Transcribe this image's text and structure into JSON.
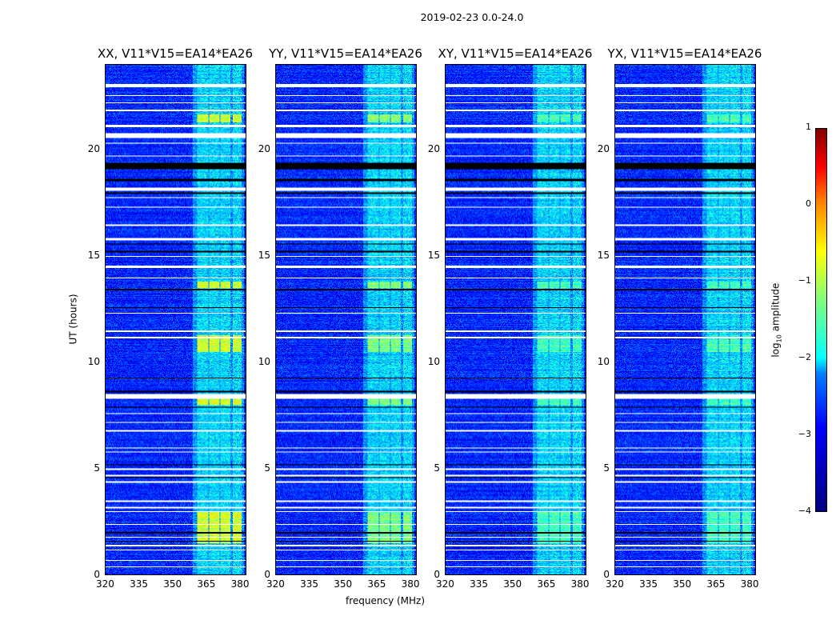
{
  "chart_data": {
    "type": "heatmap",
    "title": "2019-02-23 0.0-24.0",
    "xlabel": "frequency (MHz)",
    "ylabel": "UT (hours)",
    "xlim": [
      320,
      383
    ],
    "ylim": [
      0,
      24
    ],
    "xticks": [
      "320",
      "335",
      "350",
      "365",
      "380"
    ],
    "xtick_values": [
      320,
      335,
      350,
      365,
      380
    ],
    "yticks": [
      "0",
      "5",
      "10",
      "15",
      "20"
    ],
    "ytick_values": [
      0,
      5,
      10,
      15,
      20
    ],
    "colorbar": {
      "label": "log10 amplitude",
      "label_main": "log",
      "label_sub": "10",
      "label_rest": " amplitude",
      "range": [
        -4,
        1
      ],
      "ticks": [
        "1",
        "0",
        "−1",
        "−2",
        "−3",
        "−4"
      ],
      "tick_values": [
        1,
        0,
        -1,
        -2,
        -3,
        -4
      ],
      "colormap": "jet"
    },
    "panels": [
      {
        "title": "XX, V11*V15=EA14*EA26",
        "rfi_level": -1.2
      },
      {
        "title": "YY, V11*V15=EA14*EA26",
        "rfi_level": -1.6
      },
      {
        "title": "XY, V11*V15=EA14*EA26",
        "rfi_level": -1.9
      },
      {
        "title": "YX, V11*V15=EA14*EA26",
        "rfi_level": -1.9
      }
    ],
    "background_level": -3.2,
    "rfi_band_mhz": [
      [
        361,
        366
      ],
      [
        366.5,
        371
      ],
      [
        371.5,
        376
      ],
      [
        377,
        381
      ]
    ],
    "rfi_bright_hours": [
      [
        1.5,
        3.0
      ],
      [
        8.0,
        8.3
      ],
      [
        10.5,
        11.3
      ],
      [
        13.5,
        13.8
      ],
      [
        21.3,
        21.7
      ]
    ],
    "flagged_hours": [
      [
        22.95,
        23.1
      ],
      [
        22.55,
        22.6
      ],
      [
        22.2,
        22.25
      ],
      [
        21.85,
        21.9
      ],
      [
        21.1,
        21.2
      ],
      [
        20.55,
        20.8
      ],
      [
        20.3,
        20.35
      ],
      [
        19.7,
        19.75
      ],
      [
        18.1,
        18.25
      ],
      [
        17.75,
        17.8
      ],
      [
        17.3,
        17.35
      ],
      [
        16.45,
        16.5
      ],
      [
        15.75,
        15.85
      ],
      [
        14.95,
        15.0
      ],
      [
        14.45,
        14.55
      ],
      [
        13.95,
        14.0
      ],
      [
        12.3,
        12.35
      ],
      [
        11.45,
        11.5
      ],
      [
        11.15,
        11.2
      ],
      [
        8.3,
        8.5
      ],
      [
        7.55,
        7.6
      ],
      [
        7.15,
        7.2
      ],
      [
        6.75,
        6.8
      ],
      [
        5.95,
        6.0
      ],
      [
        5.75,
        5.8
      ],
      [
        4.95,
        5.0
      ],
      [
        4.65,
        4.7
      ],
      [
        4.35,
        4.4
      ],
      [
        3.45,
        3.5
      ],
      [
        3.15,
        3.2
      ],
      [
        2.95,
        3.0
      ],
      [
        2.35,
        2.4
      ],
      [
        1.75,
        1.8
      ],
      [
        1.35,
        1.4
      ],
      [
        1.15,
        1.2
      ],
      [
        0.65,
        0.7
      ],
      [
        0.35,
        0.4
      ]
    ],
    "blank_hours": [
      [
        19.1,
        19.4
      ],
      [
        18.55,
        18.65
      ],
      [
        17.95,
        18.0
      ],
      [
        15.55,
        15.6
      ],
      [
        15.2,
        15.25
      ],
      [
        13.4,
        13.45
      ],
      [
        12.55,
        12.6
      ],
      [
        9.25,
        9.3
      ],
      [
        8.6,
        8.65
      ],
      [
        7.85,
        7.9
      ],
      [
        5.15,
        5.2
      ],
      [
        4.55,
        4.6
      ],
      [
        1.95,
        2.0
      ],
      [
        1.55,
        1.6
      ]
    ]
  }
}
